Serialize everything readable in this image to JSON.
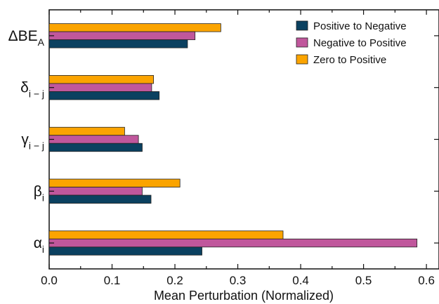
{
  "chart_data": {
    "type": "bar",
    "orientation": "horizontal",
    "xlabel": "Mean Perturbation (Normalized)",
    "xlim": [
      0,
      0.62
    ],
    "xticks": [
      "0.0",
      "0.1",
      "0.2",
      "0.3",
      "0.4",
      "0.5",
      "0.6"
    ],
    "categories": [
      {
        "main": "ΔBE",
        "sub": "A"
      },
      {
        "main": "δ",
        "sub": "i − j"
      },
      {
        "main": "γ",
        "sub": "i − j"
      },
      {
        "main": "β",
        "sub": "i"
      },
      {
        "main": "α",
        "sub": "i"
      }
    ],
    "series": [
      {
        "name": "Positive to Negative",
        "color": "#0b4160",
        "values": [
          0.22,
          0.175,
          0.148,
          0.162,
          0.243
        ]
      },
      {
        "name": "Negative to Positive",
        "color": "#c0579c",
        "values": [
          0.232,
          0.163,
          0.142,
          0.148,
          0.585
        ]
      },
      {
        "name": "Zero to Positive",
        "color": "#fba400",
        "values": [
          0.273,
          0.166,
          0.12,
          0.208,
          0.372
        ]
      }
    ],
    "legend_position": "top-right",
    "grid": false
  }
}
